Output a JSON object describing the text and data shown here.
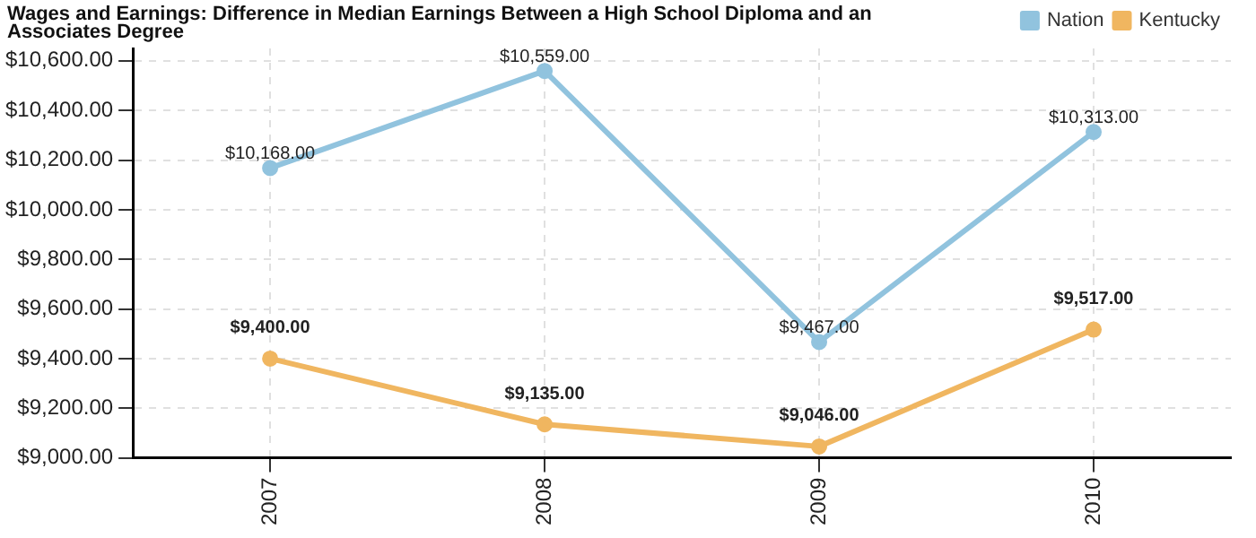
{
  "chart_data": {
    "type": "line",
    "title": "Wages and Earnings: Difference in Median Earnings Between a High School Diploma and an Associates Degree",
    "categories": [
      "2007",
      "2008",
      "2009",
      "2010"
    ],
    "series": [
      {
        "name": "Nation",
        "color": "#91c3de",
        "values": [
          10168,
          10559,
          9467,
          10313
        ],
        "value_labels": [
          "$10,168.00",
          "$10,559.00",
          "$9,467.00",
          "$10,313.00"
        ]
      },
      {
        "name": "Kentucky",
        "color": "#f0b660",
        "values": [
          9400,
          9135,
          9046,
          9517
        ],
        "value_labels": [
          "$9,400.00",
          "$9,135.00",
          "$9,046.00",
          "$9,517.00"
        ]
      }
    ],
    "ylim": [
      9000,
      10650
    ],
    "yticks": [
      {
        "value": 9000,
        "label": "$9,000.00"
      },
      {
        "value": 9200,
        "label": "$9,200.00"
      },
      {
        "value": 9400,
        "label": "$9,400.00"
      },
      {
        "value": 9600,
        "label": "$9,600.00"
      },
      {
        "value": 9800,
        "label": "$9,800.00"
      },
      {
        "value": 10000,
        "label": "$10,000.00"
      },
      {
        "value": 10200,
        "label": "$10,200.00"
      },
      {
        "value": 10400,
        "label": "$10,400.00"
      },
      {
        "value": 10600,
        "label": "$10,600.00"
      }
    ],
    "grid": true,
    "legend": "top right",
    "marker": "circle",
    "line_style": "solid"
  }
}
